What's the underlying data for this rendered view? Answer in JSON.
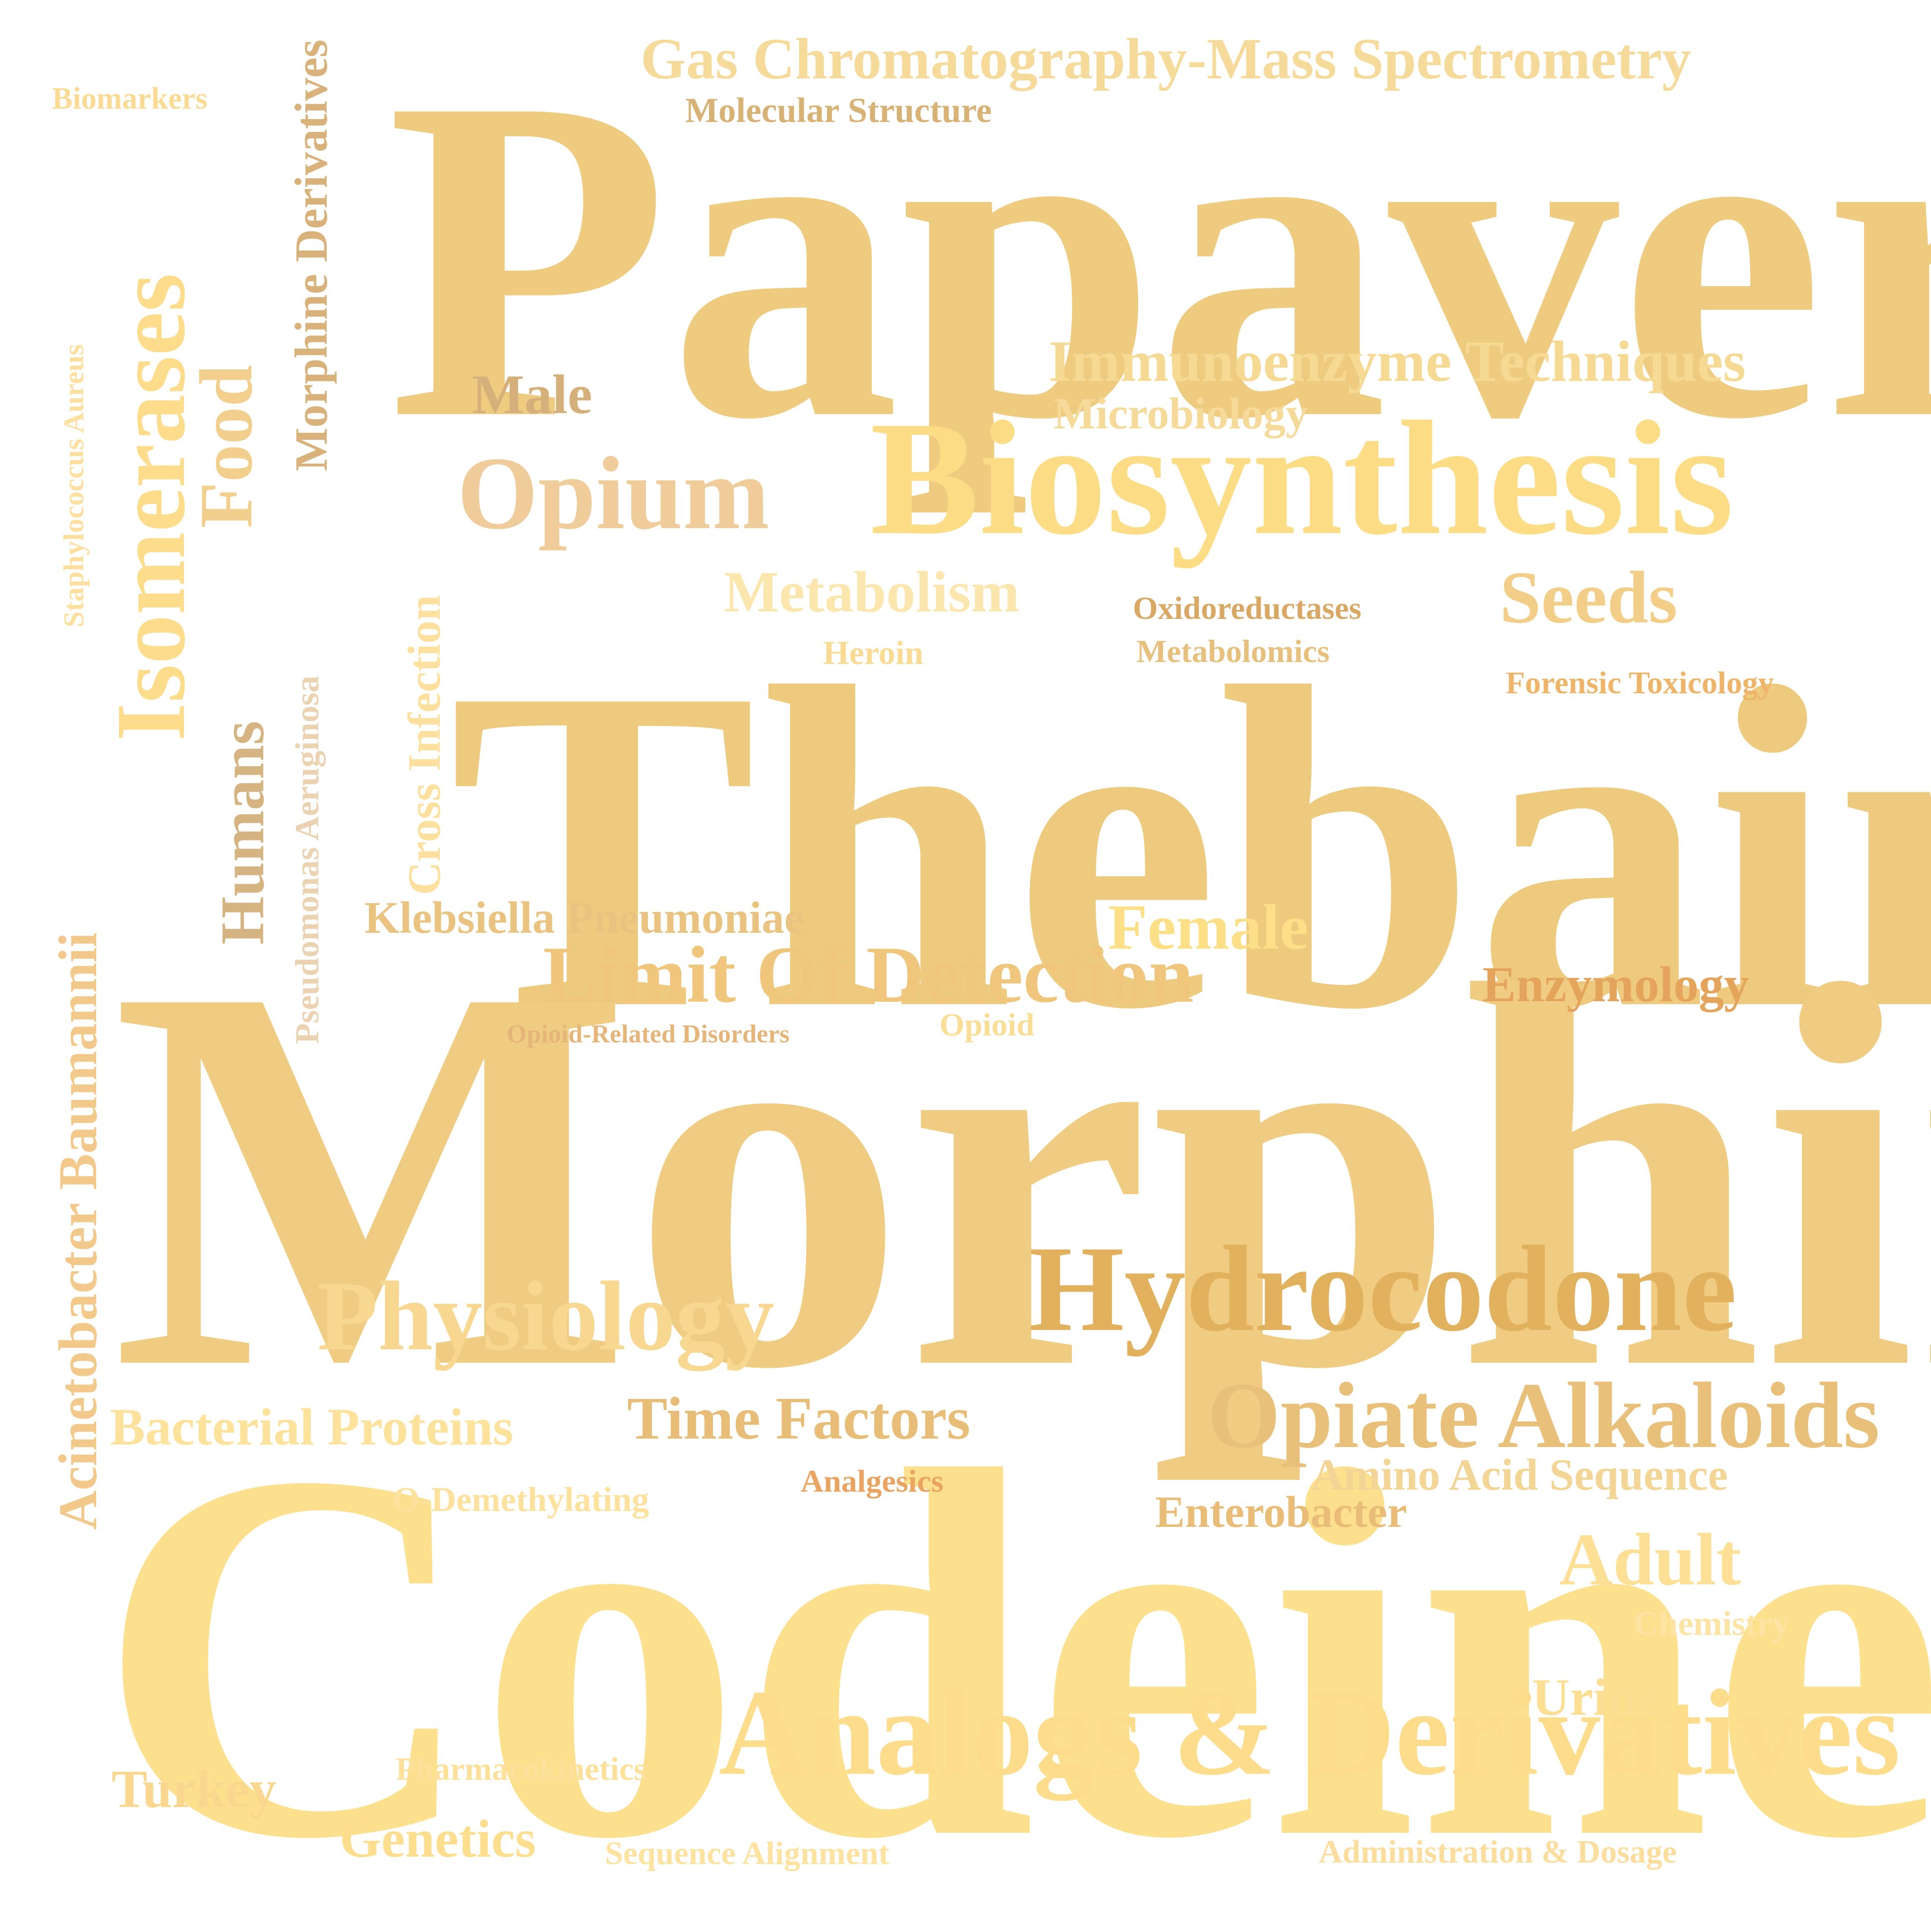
{
  "words": [
    {
      "text": "Papaver",
      "color": "#EFCB80"
    },
    {
      "text": "Thebaine",
      "color": "#EECA7F"
    },
    {
      "text": "Morphine",
      "color": "#F0CC82"
    },
    {
      "text": "Codeine",
      "color": "#FDE08E"
    },
    {
      "text": "Biosynthesis",
      "color": "#FDDC86"
    },
    {
      "text": "Hydrocodone",
      "color": "#E2B15E"
    },
    {
      "text": "Analogs & Derivatives",
      "color": "#FDDD8C"
    },
    {
      "text": "Physiology",
      "color": "#F8D791"
    },
    {
      "text": "Opiate Alkaloids",
      "color": "#E9C07A"
    },
    {
      "text": "Opium",
      "color": "#F0CC9B"
    },
    {
      "text": "Limit Of Detection",
      "color": "#EFC67B"
    },
    {
      "text": "Seeds",
      "color": "#F2CE88"
    },
    {
      "text": "Gas Chromatography-Mass Spectrometry",
      "color": "#F5DA9A"
    },
    {
      "text": "Immunoenzyme Techniques",
      "color": "#F6DA94"
    },
    {
      "text": "Female",
      "color": "#FDDF88"
    },
    {
      "text": "Time Factors",
      "color": "#E7BD77"
    },
    {
      "text": "Metabolism",
      "color": "#FBE6AE"
    },
    {
      "text": "Enzymology",
      "color": "#E5A45B"
    },
    {
      "text": "Bacterial Proteins",
      "color": "#FDE29C"
    },
    {
      "text": "Male",
      "color": "#D6B07B"
    },
    {
      "text": "Klebsiella Pneumoniae",
      "color": "#E9C37F"
    },
    {
      "text": "Genetics",
      "color": "#FDDE8F"
    },
    {
      "text": "Turkey",
      "color": "#F9D78E"
    },
    {
      "text": "Enterobacter",
      "color": "#E9BD78"
    },
    {
      "text": "Adult",
      "color": "#FDE096"
    },
    {
      "text": "Urine",
      "color": "#FDDF93"
    },
    {
      "text": "Amino Acid Sequence",
      "color": "#F3D595"
    },
    {
      "text": "Microbiology",
      "color": "#F6DA9A"
    },
    {
      "text": "Molecular Structure",
      "color": "#D8B175"
    },
    {
      "text": "Heroin",
      "color": "#FBDB94"
    },
    {
      "text": "Oxidoreductases",
      "color": "#D9A865"
    },
    {
      "text": "Metabolomics",
      "color": "#E7C07E"
    },
    {
      "text": "Forensic Toxicology",
      "color": "#EEB56A"
    },
    {
      "text": "Opioid",
      "color": "#FBDE95"
    },
    {
      "text": "Opioid-Related Disorders",
      "color": "#E5B57A"
    },
    {
      "text": "Analgesics",
      "color": "#E9A461"
    },
    {
      "text": "O-Demethylating",
      "color": "#FDE19C"
    },
    {
      "text": "Chemistry",
      "color": "#FDE3A4"
    },
    {
      "text": "Pharmacokinetics",
      "color": "#FDE09A"
    },
    {
      "text": "Sequence Alignment",
      "color": "#FDE2A0"
    },
    {
      "text": "Administration & Dosage",
      "color": "#FBDD9E"
    },
    {
      "text": "Biomarkers",
      "color": "#FBDB94"
    },
    {
      "text": "Isomerases",
      "color": "#FDDC8C"
    },
    {
      "text": "Food",
      "color": "#F3CF8E"
    },
    {
      "text": "Morphine Derivatives",
      "color": "#D8B27A"
    },
    {
      "text": "Humans",
      "color": "#D5B482"
    },
    {
      "text": "Cross Infection",
      "color": "#FDE09E"
    },
    {
      "text": "Acinetobacter Baumannii",
      "color": "#F3C88B"
    },
    {
      "text": "Pseudomonas Aeruginosa",
      "color": "#EBD2B0"
    },
    {
      "text": "Staphylococcus Aureus",
      "color": "#FDE0A0"
    }
  ]
}
